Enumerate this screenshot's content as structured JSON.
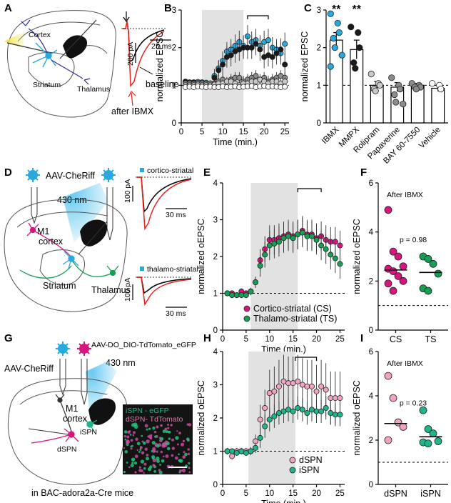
{
  "panels": {
    "A": {
      "letter": "A",
      "labels": {
        "cortex": "Cortex",
        "striatum": "Striatum",
        "thalamus": "Thalamus",
        "baseline": "baseline",
        "after": "after IBMX",
        "scale_pa": "200 pA",
        "scale_ms": "25 ms"
      }
    },
    "D": {
      "letter": "D",
      "labels": {
        "virus": "AAV-CheRiff",
        "light": "430 nm",
        "m1": "M1",
        "cortex": "cortex",
        "striatum": "Striatum",
        "thalamus": "Thalamus",
        "trace1": "cortico-striatal",
        "trace2": "thalamo-striatal",
        "scale1_pa": "100 pA",
        "scale1_ms": "30 ms",
        "scale2_pa": "100 pA",
        "scale2_ms": "30 ms"
      }
    },
    "G": {
      "letter": "G",
      "labels": {
        "virus1": "AAV-CheRiff",
        "virus2": "AAV-DO_DIO-TdTomato_eGFP",
        "light": "430 nm",
        "m1": "M1",
        "cortex": "cortex",
        "ispn": "iSPN",
        "dspn": "dSPN",
        "legend_g": "iSPN - eGFP",
        "legend_r": "dSPN- TdTomato",
        "mice": "in BAC-adora2a-Cre mice"
      }
    }
  },
  "colors": {
    "cyan": "#2aa9df",
    "black": "#1a1a1a",
    "grey": "#8c8c8c",
    "lightgrey": "#c8c8c8",
    "magenta": "#d6157f",
    "green": "#169e55",
    "pink": "#f1a3c4",
    "teal": "#1fb58c",
    "red": "#e8231f",
    "shade": "#e2e2e2"
  },
  "chart_data": [
    {
      "id": "B",
      "letter": "B",
      "type": "line",
      "xlabel": "Time (min.)",
      "ylabel": "normalized EPSC",
      "xlim": [
        0,
        26
      ],
      "ylim": [
        0,
        3
      ],
      "xticks": [
        0,
        5,
        10,
        15,
        20,
        25
      ],
      "yticks": [
        0,
        1,
        2,
        3
      ],
      "shade": [
        5,
        15
      ],
      "bracket": [
        16,
        21
      ],
      "dashed_y": 1,
      "x": [
        1,
        2,
        3,
        4,
        5,
        6,
        7,
        8,
        9,
        10,
        11,
        12,
        13,
        14,
        15,
        16,
        17,
        18,
        19,
        20,
        21,
        22,
        23,
        24,
        25
      ],
      "series": [
        {
          "color": "#2aa9df",
          "values": [
            1.08,
            1.08,
            1.07,
            1.09,
            1.08,
            1.07,
            1.05,
            1.25,
            1.45,
            1.65,
            1.9,
            1.95,
            2.05,
            2.15,
            2.05,
            2.3,
            2.15,
            2.2,
            2.05,
            2.15,
            2.2,
            2.0,
            1.95,
            1.85,
            2.1
          ],
          "err": [
            0.05,
            0.05,
            0.05,
            0.05,
            0.05,
            0.06,
            0.08,
            0.18,
            0.22,
            0.25,
            0.25,
            0.28,
            0.3,
            0.3,
            0.28,
            0.3,
            0.28,
            0.3,
            0.28,
            0.3,
            0.3,
            0.28,
            0.28,
            0.3,
            0.3
          ]
        },
        {
          "color": "#1a1a1a",
          "values": [
            1.1,
            1.07,
            1.08,
            1.05,
            1.06,
            1.04,
            1.05,
            1.2,
            1.4,
            1.55,
            1.75,
            1.8,
            1.9,
            1.95,
            2.0,
            2.0,
            2.0,
            2.1,
            1.95,
            1.75,
            1.8,
            1.75,
            1.85,
            1.95,
            1.55
          ],
          "err": [
            0.05,
            0.05,
            0.05,
            0.05,
            0.05,
            0.06,
            0.08,
            0.2,
            0.25,
            0.28,
            0.28,
            0.3,
            0.3,
            0.3,
            0.3,
            0.3,
            0.3,
            0.3,
            0.3,
            0.3,
            0.3,
            0.3,
            0.3,
            0.3,
            0.3
          ]
        },
        {
          "color": "#8c8c8c",
          "values": [
            1.05,
            1.05,
            1.04,
            1.06,
            1.05,
            1.04,
            1.05,
            1.05,
            1.1,
            1.15,
            1.1,
            1.15,
            1.2,
            1.2,
            1.1,
            1.15,
            1.2,
            1.25,
            1.15,
            1.2,
            1.1,
            1.15,
            1.2,
            1.25,
            1.2
          ],
          "err": [
            0.05,
            0.05,
            0.05,
            0.05,
            0.05,
            0.05,
            0.06,
            0.08,
            0.1,
            0.12,
            0.12,
            0.15,
            0.15,
            0.15,
            0.15,
            0.15,
            0.15,
            0.15,
            0.15,
            0.15,
            0.15,
            0.15,
            0.15,
            0.15,
            0.15
          ]
        },
        {
          "color": "#c8c8c8",
          "values": [
            1.0,
            1.0,
            1.0,
            1.02,
            1.0,
            1.0,
            1.0,
            1.02,
            1.05,
            1.05,
            1.1,
            1.1,
            1.05,
            1.0,
            1.05,
            1.05,
            1.1,
            1.1,
            1.15,
            1.1,
            1.05,
            1.1,
            1.1,
            1.05,
            1.1
          ],
          "err": [
            0.05,
            0.05,
            0.05,
            0.05,
            0.05,
            0.05,
            0.05,
            0.06,
            0.08,
            0.1,
            0.1,
            0.1,
            0.1,
            0.1,
            0.1,
            0.1,
            0.1,
            0.1,
            0.1,
            0.1,
            0.1,
            0.1,
            0.1,
            0.1,
            0.1
          ]
        },
        {
          "color": "#ffffff",
          "values": [
            0.95,
            0.96,
            0.95,
            0.97,
            0.96,
            0.95,
            0.96,
            0.95,
            0.95,
            0.97,
            0.95,
            0.96,
            0.97,
            0.95,
            0.96,
            0.97,
            0.98,
            0.95,
            0.97,
            0.98,
            0.96,
            0.97,
            0.96,
            0.95,
            0.96
          ],
          "err": [
            0.04,
            0.04,
            0.04,
            0.04,
            0.04,
            0.04,
            0.04,
            0.05,
            0.05,
            0.05,
            0.05,
            0.05,
            0.05,
            0.05,
            0.05,
            0.05,
            0.05,
            0.05,
            0.05,
            0.05,
            0.05,
            0.05,
            0.05,
            0.05,
            0.05
          ]
        }
      ]
    },
    {
      "id": "C",
      "letter": "C",
      "type": "bar",
      "ylabel": "normalized EPSC",
      "ylim": [
        0,
        3
      ],
      "yticks": [
        0,
        1,
        2,
        3
      ],
      "dashed_y": 1,
      "categories": [
        "IBMX",
        "MMPX",
        "Rolipram",
        "Papaverine",
        "BAY 60-7550",
        "Vehicle"
      ],
      "values": [
        2.2,
        1.95,
        1.0,
        0.95,
        1.0,
        0.92
      ],
      "err": [
        0.2,
        0.25,
        0.1,
        0.12,
        0.05,
        0.08
      ],
      "colors": [
        "#2aa9df",
        "#1a1a1a",
        "#c8c8c8",
        "#8c8c8c",
        "#8c8c8c",
        "#ffffff"
      ],
      "sig": [
        "**",
        "**",
        "",
        "",
        "",
        ""
      ],
      "points": [
        [
          2.9,
          2.65,
          2.4,
          2.25,
          2.0,
          1.8,
          1.5
        ],
        [
          2.55,
          2.4,
          2.0,
          1.6,
          1.45
        ],
        [
          1.3,
          1.05,
          1.0,
          0.9,
          0.85
        ],
        [
          1.2,
          1.0,
          0.9,
          0.75,
          0.55,
          0.5
        ],
        [
          1.05,
          1.0,
          0.95,
          0.95,
          0.9
        ],
        [
          1.05,
          1.0,
          0.9
        ]
      ]
    },
    {
      "id": "E",
      "letter": "E",
      "type": "line",
      "xlabel": "Time (min.)",
      "ylabel": "normalized oEPSC",
      "xlim": [
        0,
        26
      ],
      "ylim": [
        0,
        4
      ],
      "xticks": [
        0,
        5,
        10,
        15,
        20,
        25
      ],
      "yticks": [
        0,
        1,
        2,
        3,
        4
      ],
      "shade": [
        6,
        16
      ],
      "bracket": [
        16,
        21
      ],
      "dashed_y": 1,
      "x": [
        1,
        2,
        3,
        4,
        5,
        6,
        7,
        8,
        9,
        10,
        11,
        12,
        13,
        14,
        15,
        16,
        17,
        18,
        19,
        20,
        21,
        22,
        23,
        24,
        25
      ],
      "series": [
        {
          "name": "Cortico-striatal (CS)",
          "color": "#d6157f",
          "values": [
            1.0,
            1.0,
            0.95,
            1.05,
            1.0,
            1.05,
            1.3,
            1.9,
            2.2,
            2.45,
            2.45,
            2.5,
            2.55,
            2.6,
            2.55,
            2.6,
            2.7,
            2.6,
            2.6,
            2.5,
            2.55,
            2.45,
            2.4,
            2.4,
            2.3
          ],
          "err": [
            0.08,
            0.08,
            0.08,
            0.08,
            0.08,
            0.1,
            0.15,
            0.3,
            0.35,
            0.4,
            0.4,
            0.4,
            0.4,
            0.4,
            0.4,
            0.4,
            0.4,
            0.4,
            0.4,
            0.4,
            0.4,
            0.4,
            0.4,
            0.4,
            0.4
          ]
        },
        {
          "name": "Thalamo-striatal (TS)",
          "color": "#169e55",
          "values": [
            1.0,
            0.95,
            0.95,
            0.95,
            0.95,
            1.05,
            1.3,
            1.75,
            2.05,
            2.3,
            2.35,
            2.4,
            2.5,
            2.55,
            2.5,
            2.6,
            2.65,
            2.55,
            2.55,
            2.45,
            2.3,
            2.2,
            2.05,
            1.95,
            1.8
          ],
          "err": [
            0.08,
            0.08,
            0.08,
            0.08,
            0.08,
            0.1,
            0.15,
            0.3,
            0.35,
            0.4,
            0.4,
            0.4,
            0.4,
            0.4,
            0.4,
            0.4,
            0.4,
            0.4,
            0.4,
            0.4,
            0.4,
            0.4,
            0.4,
            0.4,
            0.4
          ]
        }
      ]
    },
    {
      "id": "F",
      "letter": "F",
      "type": "scatter",
      "title": "After IBMX",
      "ylabel": "normalized oEPSC",
      "ylim": [
        0,
        6
      ],
      "yticks": [
        0,
        2,
        4,
        6
      ],
      "dashed_y": 1,
      "categories": [
        "CS",
        "TS"
      ],
      "pvalue": "p = 0.98",
      "colors": [
        "#d6157f",
        "#169e55"
      ],
      "medians": [
        2.45,
        2.35
      ],
      "points": [
        [
          4.9,
          3.2,
          3.0,
          2.6,
          2.5,
          2.4,
          2.2,
          2.0,
          1.9,
          1.6
        ],
        [
          3.0,
          2.9,
          2.7,
          2.3,
          1.7,
          1.6
        ]
      ]
    },
    {
      "id": "H",
      "letter": "H",
      "type": "line",
      "xlabel": "Time (min.)",
      "ylabel": "normalized oEPSC",
      "xlim": [
        0,
        26
      ],
      "ylim": [
        0,
        4
      ],
      "xticks": [
        0,
        5,
        10,
        15,
        20,
        25
      ],
      "yticks": [
        0,
        1,
        2,
        3,
        4
      ],
      "shade": [
        5.5,
        15.5
      ],
      "bracket": [
        15.5,
        20
      ],
      "dashed_y": 1,
      "x": [
        1,
        2,
        3,
        4,
        5,
        6,
        7,
        8,
        9,
        10,
        11,
        12,
        13,
        14,
        15,
        16,
        17,
        18,
        19,
        20,
        21,
        22,
        23,
        24,
        25
      ],
      "series": [
        {
          "name": "dSPN",
          "color": "#f1a3c4",
          "values": [
            1.0,
            0.85,
            1.0,
            1.0,
            1.0,
            1.0,
            1.3,
            1.95,
            2.3,
            2.75,
            2.8,
            2.95,
            3.1,
            3.05,
            3.05,
            3.1,
            3.0,
            2.95,
            2.95,
            2.8,
            2.95,
            2.85,
            2.6,
            2.6,
            2.6
          ],
          "err": [
            0.1,
            0.1,
            0.1,
            0.1,
            0.1,
            0.12,
            0.2,
            0.45,
            0.55,
            0.7,
            0.75,
            0.8,
            0.8,
            0.8,
            0.8,
            0.8,
            0.8,
            0.8,
            0.8,
            0.8,
            0.8,
            0.8,
            0.8,
            0.8,
            0.8
          ]
        },
        {
          "name": "iSPN",
          "color": "#1fb58c",
          "values": [
            1.0,
            1.0,
            0.95,
            1.0,
            0.95,
            1.0,
            1.1,
            1.4,
            1.75,
            1.95,
            2.05,
            2.15,
            2.2,
            2.25,
            2.2,
            2.3,
            2.25,
            2.15,
            2.25,
            2.2,
            2.2,
            2.3,
            2.15,
            2.1,
            2.1
          ],
          "err": [
            0.08,
            0.08,
            0.08,
            0.08,
            0.08,
            0.1,
            0.15,
            0.3,
            0.35,
            0.35,
            0.35,
            0.35,
            0.35,
            0.35,
            0.35,
            0.35,
            0.35,
            0.35,
            0.35,
            0.35,
            0.35,
            0.35,
            0.35,
            0.35,
            0.35
          ]
        }
      ]
    },
    {
      "id": "I",
      "letter": "I",
      "type": "scatter",
      "title": "After IBMX",
      "ylabel": "normalized oEPSC",
      "ylim": [
        0,
        6
      ],
      "yticks": [
        0,
        2,
        4,
        6
      ],
      "dashed_y": 1,
      "categories": [
        "dSPN",
        "iSPN"
      ],
      "pvalue": "p = 0.23",
      "colors": [
        "#f1a3c4",
        "#1fb58c"
      ],
      "medians": [
        2.75,
        2.15
      ],
      "points": [
        [
          4.9,
          3.9,
          2.8,
          2.6,
          2.0
        ],
        [
          3.35,
          2.5,
          2.3,
          1.95,
          1.9,
          1.85
        ]
      ]
    }
  ]
}
